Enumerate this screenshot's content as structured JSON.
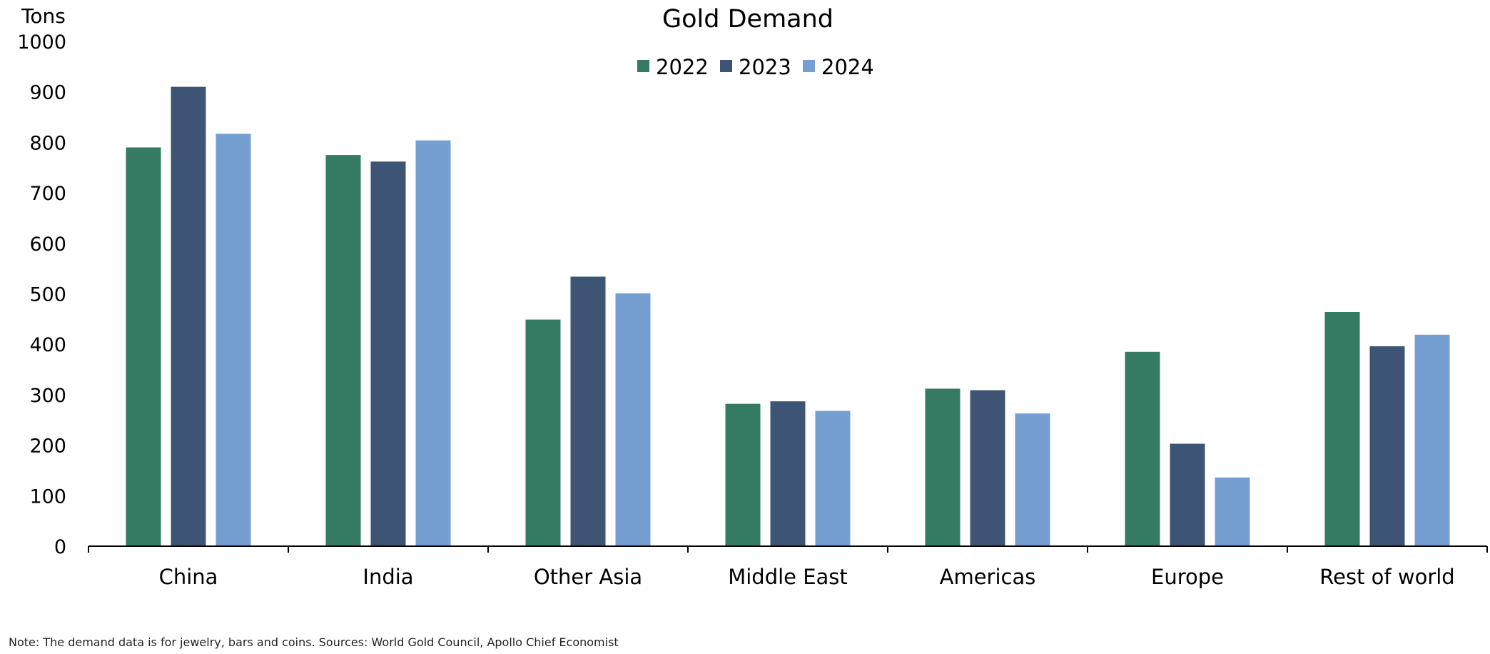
{
  "chart_data": {
    "type": "bar",
    "title": "Gold Demand",
    "ylabel": "Tons",
    "xlabel": "",
    "ylim": [
      0,
      1000
    ],
    "yticks": [
      "0",
      "100",
      "200",
      "300",
      "400",
      "500",
      "600",
      "700",
      "800",
      "900",
      "1000"
    ],
    "grid": false,
    "legend_position": "top-center",
    "categories": [
      "China",
      "India",
      "Other Asia",
      "Middle East",
      "Americas",
      "Europe",
      "Rest of world"
    ],
    "series": [
      {
        "name": "2022",
        "color": "#357A63",
        "values": [
          790,
          775,
          449,
          282,
          312,
          385,
          464
        ]
      },
      {
        "name": "2023",
        "color": "#3E5474",
        "values": [
          910,
          762,
          534,
          287,
          309,
          203,
          396
        ]
      },
      {
        "name": "2024",
        "color": "#759FD0",
        "values": [
          817,
          804,
          501,
          268,
          263,
          136,
          419
        ]
      }
    ]
  },
  "note": "Note: The demand data is for jewelry, bars and coins. Sources: World Gold Council, Apollo Chief Economist"
}
